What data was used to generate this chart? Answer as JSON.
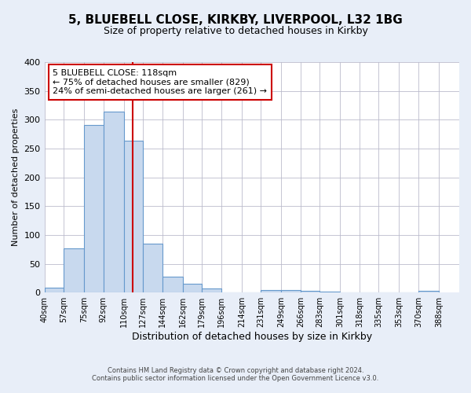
{
  "title1": "5, BLUEBELL CLOSE, KIRKBY, LIVERPOOL, L32 1BG",
  "title2": "Size of property relative to detached houses in Kirkby",
  "xlabel": "Distribution of detached houses by size in Kirkby",
  "ylabel": "Number of detached properties",
  "bin_labels": [
    "40sqm",
    "57sqm",
    "75sqm",
    "92sqm",
    "110sqm",
    "127sqm",
    "144sqm",
    "162sqm",
    "179sqm",
    "196sqm",
    "214sqm",
    "231sqm",
    "249sqm",
    "266sqm",
    "283sqm",
    "301sqm",
    "318sqm",
    "335sqm",
    "353sqm",
    "370sqm",
    "388sqm"
  ],
  "bin_edges": [
    40,
    57,
    75,
    92,
    110,
    127,
    144,
    162,
    179,
    196,
    214,
    231,
    249,
    266,
    283,
    301,
    318,
    335,
    353,
    370,
    388
  ],
  "bar_heights": [
    8,
    76,
    291,
    314,
    263,
    85,
    28,
    15,
    7,
    0,
    0,
    5,
    4,
    3,
    2,
    0,
    0,
    0,
    0,
    3
  ],
  "bar_color": "#c8d9ee",
  "bar_edge_color": "#6699cc",
  "reference_line_x": 118,
  "reference_line_color": "#cc0000",
  "ylim": [
    0,
    400
  ],
  "yticks": [
    0,
    50,
    100,
    150,
    200,
    250,
    300,
    350,
    400
  ],
  "annotation_text": "5 BLUEBELL CLOSE: 118sqm\n← 75% of detached houses are smaller (829)\n24% of semi-detached houses are larger (261) →",
  "annotation_box_facecolor": "#ffffff",
  "annotation_box_edgecolor": "#cc0000",
  "footer1": "Contains HM Land Registry data © Crown copyright and database right 2024.",
  "footer2": "Contains public sector information licensed under the Open Government Licence v3.0.",
  "fig_facecolor": "#e8eef8",
  "plot_facecolor": "#ffffff",
  "grid_color": "#bbbbcc",
  "title1_fontsize": 11,
  "title2_fontsize": 9,
  "xlabel_fontsize": 9,
  "ylabel_fontsize": 8,
  "annotation_fontsize": 8
}
